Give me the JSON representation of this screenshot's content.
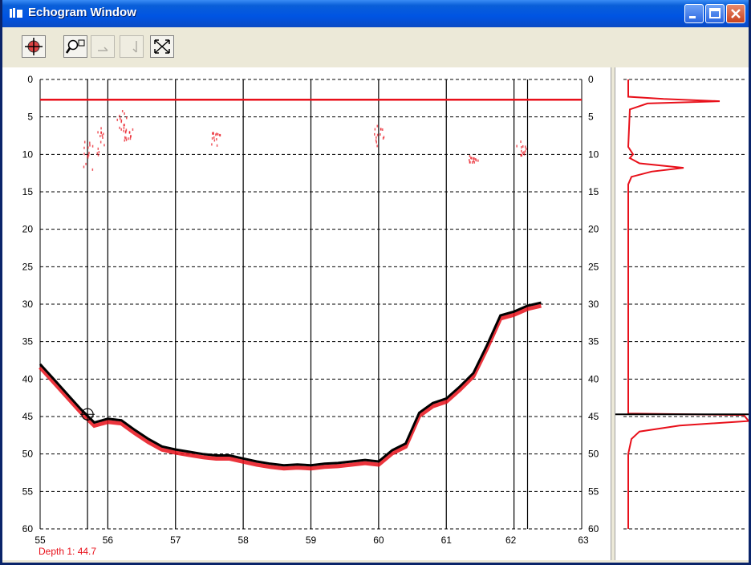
{
  "window": {
    "title": "Echogram Window",
    "buttons": {
      "minimize": "minimize",
      "maximize": "maximize",
      "close": "close"
    }
  },
  "toolbar": {
    "tools": [
      {
        "icon": "pan-crosshair-icon",
        "enabled": true
      },
      {
        "icon": "zoom-icon",
        "enabled": true
      },
      {
        "icon": "zoom-back-icon",
        "enabled": false
      },
      {
        "icon": "zoom-forward-icon",
        "enabled": false
      },
      {
        "icon": "zoom-fit-icon",
        "enabled": true
      }
    ]
  },
  "echogram": {
    "depth_ticks": [
      "0",
      "5",
      "10",
      "15",
      "20",
      "25",
      "30",
      "35",
      "40",
      "45",
      "50",
      "55",
      "60"
    ],
    "x_ticks": [
      "55",
      "56",
      "57",
      "58",
      "59",
      "60",
      "61",
      "62",
      "63"
    ],
    "status_label": "Depth 1:",
    "status_value": "44.7",
    "surface_line_depth": 2.7,
    "cursor": {
      "x": 55.7,
      "depth": 44.7
    },
    "colors": {
      "echo": "#e8101a",
      "bottom": "#000000",
      "grid": "#000000"
    }
  },
  "chart_data": {
    "type": "line",
    "title": "",
    "xlabel": "",
    "ylabel": "",
    "xlim": [
      55,
      63
    ],
    "ylim": [
      0,
      60
    ],
    "y_inverted": true,
    "x_ticks": [
      55,
      56,
      57,
      58,
      59,
      60,
      61,
      62,
      63
    ],
    "y_ticks": [
      0,
      5,
      10,
      15,
      20,
      25,
      30,
      35,
      40,
      45,
      50,
      55,
      60
    ],
    "vertical_markers": [
      55.7,
      56.0,
      57.0,
      58.0,
      59.0,
      60.0,
      61.0,
      62.0,
      62.2
    ],
    "series": [
      {
        "x": [
          55.0,
          55.2,
          55.4,
          55.6,
          55.8,
          56.0,
          56.2,
          56.4,
          56.6,
          56.8,
          57.0,
          57.2,
          57.4,
          57.6,
          57.8,
          58.0,
          58.2,
          58.4,
          58.6,
          58.8,
          59.0,
          59.2,
          59.4,
          59.6,
          59.8,
          60.0,
          60.2,
          60.4,
          60.6,
          60.8,
          61.0,
          61.2,
          61.4,
          61.6,
          61.8,
          62.0,
          62.2,
          62.4
        ],
        "y": [
          38.0,
          40.0,
          42.0,
          44.0,
          45.8,
          45.3,
          45.5,
          46.8,
          48.0,
          49.0,
          49.4,
          49.7,
          50.0,
          50.2,
          50.2,
          50.6,
          51.0,
          51.3,
          51.5,
          51.4,
          51.5,
          51.3,
          51.2,
          51.0,
          50.8,
          51.0,
          49.5,
          48.6,
          44.5,
          43.2,
          42.6,
          41.0,
          39.2,
          35.5,
          31.5,
          31.0,
          30.2,
          29.8
        ]
      }
    ],
    "profile": {
      "ylim": [
        0,
        60
      ],
      "y_ticks": [
        0,
        5,
        10,
        15,
        20,
        25,
        30,
        35,
        40,
        45,
        50,
        55,
        60
      ],
      "peaks_depth": [
        2.7,
        12.0,
        45.5
      ]
    }
  }
}
